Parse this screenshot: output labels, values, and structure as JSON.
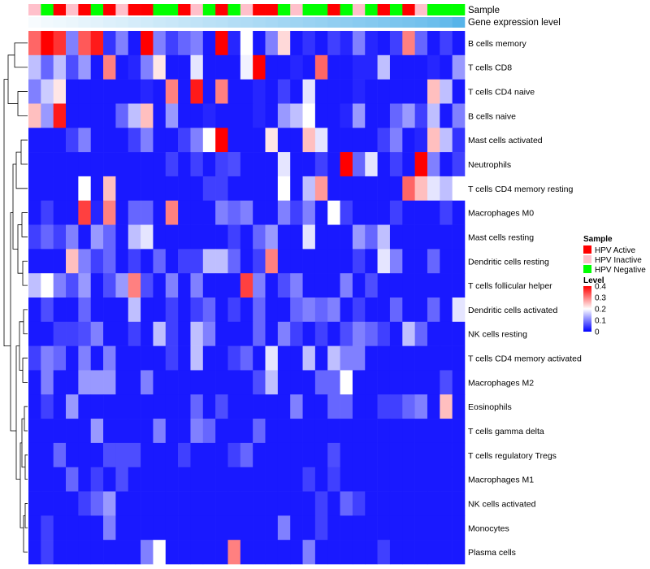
{
  "chart_data": {
    "type": "heatmap",
    "title": "",
    "annotation_labels": [
      "Sample",
      "Gene expression level"
    ],
    "rows": [
      "B cells memory",
      "T cells CD8",
      "T cells CD4 naive",
      "B cells naive",
      "Mast cells activated",
      "Neutrophils",
      "T cells CD4 memory resting",
      "Macrophages M0",
      "Mast cells resting",
      "Dendritic cells resting",
      "T cells follicular helper",
      "Dendritic cells activated",
      "NK cells resting",
      "T cells CD4 memory activated",
      "Macrophages M2",
      "Eosinophils",
      "T cells gamma delta",
      "T cells regulatory  Tregs",
      "Macrophages M1",
      "NK cells activated",
      "Monocytes",
      "Plasma cells"
    ],
    "column_samples": [
      "HPV Inactive",
      "HPV Negative",
      "HPV Active",
      "HPV Inactive",
      "HPV Active",
      "HPV Negative",
      "HPV Active",
      "HPV Inactive",
      "HPV Active",
      "HPV Active",
      "HPV Negative",
      "HPV Negative",
      "HPV Active",
      "HPV Inactive",
      "HPV Negative",
      "HPV Active",
      "HPV Negative",
      "HPV Inactive",
      "HPV Active",
      "HPV Active",
      "HPV Negative",
      "HPV Inactive",
      "HPV Negative",
      "HPV Negative",
      "HPV Active",
      "HPV Negative",
      "HPV Inactive",
      "HPV Negative",
      "HPV Active",
      "HPV Negative",
      "HPV Active",
      "HPV Inactive",
      "HPV Negative",
      "HPV Negative",
      "HPV Negative"
    ],
    "gene_expression_level": [
      0.05,
      0.08,
      0.1,
      0.12,
      0.15,
      0.17,
      0.2,
      0.22,
      0.25,
      0.27,
      0.3,
      0.32,
      0.35,
      0.37,
      0.4,
      0.42,
      0.45,
      0.47,
      0.5,
      0.52,
      0.55,
      0.57,
      0.6,
      0.62,
      0.65,
      0.67,
      0.7,
      0.72,
      0.75,
      0.78,
      0.8,
      0.83,
      0.87,
      0.92,
      1.0
    ],
    "values": [
      [
        0.32,
        0.4,
        0.36,
        0.1,
        0.33,
        0.38,
        0.04,
        0.1,
        0.02,
        0.4,
        0.1,
        0.05,
        0.08,
        0.1,
        0.02,
        0.4,
        0.03,
        0.2,
        0.02,
        0.1,
        0.23,
        0.02,
        0.04,
        0.02,
        0.05,
        0.03,
        0.1,
        0.03,
        0.02,
        0.05,
        0.3,
        0.08,
        0.02,
        0.05,
        0.02
      ],
      [
        0.15,
        0.08,
        0.15,
        0.06,
        0.12,
        0.02,
        0.3,
        0.02,
        0.03,
        0.1,
        0.22,
        0.02,
        0.02,
        0.18,
        0.02,
        0.02,
        0.02,
        0.19,
        0.4,
        0.02,
        0.02,
        0.03,
        0.02,
        0.32,
        0.02,
        0.02,
        0.03,
        0.03,
        0.15,
        0.02,
        0.02,
        0.02,
        0.03,
        0.02,
        0.12
      ],
      [
        0.1,
        0.16,
        0.22,
        0.02,
        0.02,
        0.02,
        0.02,
        0.02,
        0.02,
        0.03,
        0.02,
        0.3,
        0.02,
        0.38,
        0.02,
        0.3,
        0.02,
        0.02,
        0.03,
        0.02,
        0.05,
        0.02,
        0.18,
        0.02,
        0.02,
        0.02,
        0.03,
        0.02,
        0.02,
        0.02,
        0.02,
        0.02,
        0.25,
        0.15,
        0.02
      ],
      [
        0.25,
        0.12,
        0.38,
        0.02,
        0.02,
        0.02,
        0.02,
        0.08,
        0.15,
        0.25,
        0.02,
        0.12,
        0.02,
        0.02,
        0.03,
        0.02,
        0.02,
        0.02,
        0.03,
        0.02,
        0.12,
        0.15,
        0.2,
        0.02,
        0.02,
        0.03,
        0.12,
        0.02,
        0.02,
        0.08,
        0.12,
        0.05,
        0.15,
        0.02,
        0.1
      ],
      [
        0.02,
        0.02,
        0.02,
        0.05,
        0.1,
        0.02,
        0.02,
        0.02,
        0.05,
        0.1,
        0.02,
        0.02,
        0.05,
        0.1,
        0.2,
        0.4,
        0.02,
        0.02,
        0.02,
        0.22,
        0.02,
        0.02,
        0.25,
        0.18,
        0.02,
        0.02,
        0.02,
        0.02,
        0.05,
        0.1,
        0.02,
        0.03,
        0.25,
        0.15,
        0.04
      ],
      [
        0.02,
        0.02,
        0.02,
        0.02,
        0.02,
        0.02,
        0.02,
        0.02,
        0.02,
        0.02,
        0.02,
        0.05,
        0.02,
        0.05,
        0.02,
        0.05,
        0.06,
        0.02,
        0.02,
        0.02,
        0.18,
        0.02,
        0.02,
        0.05,
        0.02,
        0.4,
        0.08,
        0.18,
        0.02,
        0.05,
        0.02,
        0.4,
        0.1,
        0.02,
        0.05
      ],
      [
        0.02,
        0.02,
        0.02,
        0.02,
        0.2,
        0.02,
        0.25,
        0.02,
        0.02,
        0.02,
        0.02,
        0.02,
        0.02,
        0.02,
        0.05,
        0.05,
        0.02,
        0.02,
        0.02,
        0.02,
        0.2,
        0.02,
        0.15,
        0.28,
        0.02,
        0.02,
        0.02,
        0.02,
        0.02,
        0.02,
        0.32,
        0.25,
        0.18,
        0.15,
        0.2
      ],
      [
        0.02,
        0.05,
        0.02,
        0.02,
        0.35,
        0.03,
        0.3,
        0.02,
        0.08,
        0.08,
        0.02,
        0.3,
        0.02,
        0.02,
        0.02,
        0.1,
        0.08,
        0.1,
        0.02,
        0.02,
        0.1,
        0.05,
        0.1,
        0.02,
        0.2,
        0.05,
        0.02,
        0.02,
        0.02,
        0.05,
        0.02,
        0.02,
        0.02,
        0.05,
        0.02
      ],
      [
        0.05,
        0.08,
        0.05,
        0.1,
        0.02,
        0.12,
        0.08,
        0.02,
        0.15,
        0.18,
        0.02,
        0.02,
        0.02,
        0.02,
        0.02,
        0.02,
        0.05,
        0.02,
        0.08,
        0.12,
        0.02,
        0.02,
        0.18,
        0.02,
        0.02,
        0.02,
        0.12,
        0.08,
        0.15,
        0.02,
        0.02,
        0.02,
        0.02,
        0.02,
        0.02
      ],
      [
        0.02,
        0.02,
        0.02,
        0.25,
        0.1,
        0.05,
        0.08,
        0.02,
        0.05,
        0.02,
        0.08,
        0.02,
        0.05,
        0.05,
        0.15,
        0.15,
        0.08,
        0.02,
        0.05,
        0.3,
        0.02,
        0.02,
        0.02,
        0.02,
        0.02,
        0.02,
        0.05,
        0.02,
        0.18,
        0.1,
        0.02,
        0.02,
        0.08,
        0.02,
        0.02
      ],
      [
        0.15,
        0.2,
        0.1,
        0.06,
        0.12,
        0.02,
        0.06,
        0.12,
        0.3,
        0.06,
        0.02,
        0.1,
        0.02,
        0.1,
        0.02,
        0.02,
        0.02,
        0.35,
        0.1,
        0.02,
        0.06,
        0.1,
        0.02,
        0.02,
        0.02,
        0.1,
        0.02,
        0.06,
        0.02,
        0.02,
        0.02,
        0.02,
        0.02,
        0.02,
        0.02
      ],
      [
        0.02,
        0.06,
        0.02,
        0.02,
        0.08,
        0.02,
        0.02,
        0.02,
        0.15,
        0.02,
        0.02,
        0.05,
        0.02,
        0.05,
        0.08,
        0.02,
        0.05,
        0.02,
        0.08,
        0.02,
        0.02,
        0.08,
        0.1,
        0.08,
        0.1,
        0.02,
        0.05,
        0.02,
        0.02,
        0.08,
        0.02,
        0.02,
        0.08,
        0.02,
        0.18
      ],
      [
        0.02,
        0.02,
        0.05,
        0.05,
        0.06,
        0.1,
        0.02,
        0.02,
        0.05,
        0.02,
        0.15,
        0.05,
        0.02,
        0.15,
        0.1,
        0.02,
        0.02,
        0.02,
        0.08,
        0.02,
        0.1,
        0.05,
        0.02,
        0.05,
        0.02,
        0.06,
        0.1,
        0.08,
        0.05,
        0.02,
        0.15,
        0.08,
        0.02,
        0.02,
        0.02
      ],
      [
        0.05,
        0.1,
        0.08,
        0.02,
        0.1,
        0.02,
        0.1,
        0.02,
        0.02,
        0.02,
        0.02,
        0.05,
        0.02,
        0.15,
        0.02,
        0.02,
        0.05,
        0.08,
        0.02,
        0.18,
        0.02,
        0.02,
        0.15,
        0.02,
        0.15,
        0.1,
        0.1,
        0.02,
        0.02,
        0.02,
        0.02,
        0.02,
        0.02,
        0.02,
        0.02
      ],
      [
        0.02,
        0.1,
        0.02,
        0.02,
        0.12,
        0.12,
        0.12,
        0.02,
        0.02,
        0.1,
        0.02,
        0.02,
        0.02,
        0.02,
        0.02,
        0.02,
        0.02,
        0.02,
        0.06,
        0.15,
        0.02,
        0.02,
        0.02,
        0.08,
        0.08,
        0.2,
        0.02,
        0.02,
        0.02,
        0.02,
        0.02,
        0.02,
        0.02,
        0.06,
        0.02
      ],
      [
        0.02,
        0.05,
        0.02,
        0.12,
        0.02,
        0.02,
        0.02,
        0.02,
        0.02,
        0.02,
        0.02,
        0.02,
        0.02,
        0.08,
        0.02,
        0.06,
        0.02,
        0.02,
        0.02,
        0.02,
        0.02,
        0.1,
        0.02,
        0.02,
        0.08,
        0.08,
        0.02,
        0.02,
        0.05,
        0.05,
        0.08,
        0.1,
        0.02,
        0.25,
        0.02
      ],
      [
        0.02,
        0.02,
        0.02,
        0.02,
        0.02,
        0.12,
        0.02,
        0.02,
        0.02,
        0.02,
        0.1,
        0.02,
        0.02,
        0.1,
        0.08,
        0.02,
        0.02,
        0.02,
        0.08,
        0.02,
        0.02,
        0.02,
        0.02,
        0.02,
        0.02,
        0.02,
        0.02,
        0.02,
        0.02,
        0.02,
        0.02,
        0.02,
        0.02,
        0.02,
        0.02
      ],
      [
        0.02,
        0.02,
        0.08,
        0.02,
        0.02,
        0.02,
        0.06,
        0.06,
        0.06,
        0.02,
        0.02,
        0.02,
        0.05,
        0.02,
        0.02,
        0.02,
        0.05,
        0.08,
        0.02,
        0.02,
        0.02,
        0.02,
        0.02,
        0.02,
        0.06,
        0.02,
        0.02,
        0.02,
        0.02,
        0.02,
        0.02,
        0.02,
        0.02,
        0.02,
        0.02
      ],
      [
        0.02,
        0.02,
        0.02,
        0.08,
        0.02,
        0.05,
        0.02,
        0.06,
        0.02,
        0.02,
        0.02,
        0.02,
        0.02,
        0.02,
        0.02,
        0.02,
        0.02,
        0.02,
        0.02,
        0.02,
        0.02,
        0.02,
        0.05,
        0.02,
        0.05,
        0.02,
        0.02,
        0.02,
        0.02,
        0.02,
        0.02,
        0.02,
        0.02,
        0.02,
        0.02
      ],
      [
        0.02,
        0.02,
        0.02,
        0.02,
        0.05,
        0.08,
        0.12,
        0.02,
        0.02,
        0.02,
        0.02,
        0.02,
        0.02,
        0.02,
        0.02,
        0.02,
        0.02,
        0.02,
        0.02,
        0.02,
        0.02,
        0.02,
        0.02,
        0.05,
        0.02,
        0.08,
        0.05,
        0.02,
        0.02,
        0.02,
        0.02,
        0.02,
        0.02,
        0.02,
        0.02
      ],
      [
        0.02,
        0.05,
        0.02,
        0.02,
        0.02,
        0.02,
        0.1,
        0.02,
        0.02,
        0.02,
        0.02,
        0.02,
        0.02,
        0.02,
        0.02,
        0.02,
        0.02,
        0.02,
        0.02,
        0.02,
        0.1,
        0.02,
        0.02,
        0.05,
        0.02,
        0.02,
        0.02,
        0.02,
        0.02,
        0.02,
        0.02,
        0.02,
        0.02,
        0.02,
        0.02
      ],
      [
        0.02,
        0.05,
        0.02,
        0.02,
        0.02,
        0.02,
        0.02,
        0.02,
        0.02,
        0.1,
        0.2,
        0.02,
        0.02,
        0.02,
        0.02,
        0.02,
        0.3,
        0.02,
        0.02,
        0.02,
        0.02,
        0.02,
        0.1,
        0.02,
        0.02,
        0.02,
        0.02,
        0.02,
        0.05,
        0.02,
        0.02,
        0.02,
        0.02,
        0.02,
        0.02
      ]
    ],
    "sample_legend": {
      "title": "Sample",
      "entries": [
        {
          "label": "HPV Active",
          "color": "#ff0000"
        },
        {
          "label": "HPV Inactive",
          "color": "#ffc0cb"
        },
        {
          "label": "HPV Negative",
          "color": "#00ff00"
        }
      ]
    },
    "level_legend": {
      "title": "Level",
      "ticks": [
        "0.4",
        "0.3",
        "0.2",
        "0.1",
        "0"
      ],
      "tick_values": [
        0.4,
        0.3,
        0.2,
        0.1,
        0
      ],
      "range": [
        0,
        0.4
      ],
      "colors": {
        "low": "#0000ff",
        "mid": "#ffffff",
        "high": "#ff0000"
      }
    },
    "gene_expression_colors": {
      "low": "#ffffff",
      "high": "#56b4e9"
    }
  }
}
